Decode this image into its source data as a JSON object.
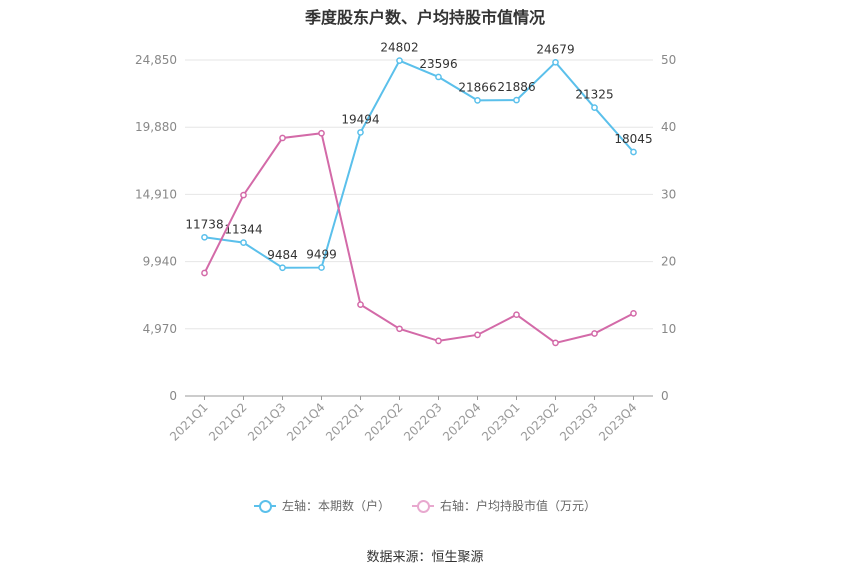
{
  "chart_data": {
    "type": "line",
    "title": "季度股东户数、户均持股市值情况",
    "categories": [
      "2021Q1",
      "2021Q2",
      "2021Q3",
      "2021Q4",
      "2022Q1",
      "2022Q2",
      "2022Q3",
      "2022Q4",
      "2023Q1",
      "2023Q2",
      "2023Q3",
      "2023Q4"
    ],
    "left_axis": {
      "ylim": [
        0,
        24850
      ],
      "ticks": [
        "0",
        "4,970",
        "9,940",
        "14,910",
        "19,880",
        "24,850"
      ]
    },
    "right_axis": {
      "ylim": [
        0,
        50
      ],
      "ticks": [
        "0",
        "10",
        "20",
        "30",
        "40",
        "50"
      ]
    },
    "grid": true,
    "legend_position": "bottom",
    "series": [
      {
        "name": "左轴：本期数（户）",
        "axis": "left",
        "color": "#5bc0eb",
        "values": [
          11738,
          11344,
          9484,
          9499,
          19494,
          24802,
          23596,
          21866,
          21886,
          24679,
          21325,
          18045
        ],
        "labels": [
          "11738",
          "11344",
          "9484",
          "9499",
          "19494",
          "24802",
          "23596",
          "21866",
          "21886",
          "24679",
          "21325",
          "18045"
        ]
      },
      {
        "name": "右轴：户均持股市值（万元）",
        "axis": "right",
        "color": "#d36aa8",
        "values": [
          18.3,
          29.9,
          38.4,
          39.1,
          13.6,
          10.0,
          8.2,
          9.1,
          12.1,
          7.9,
          9.3,
          12.3
        ]
      }
    ]
  },
  "source": "数据来源：恒生聚源"
}
